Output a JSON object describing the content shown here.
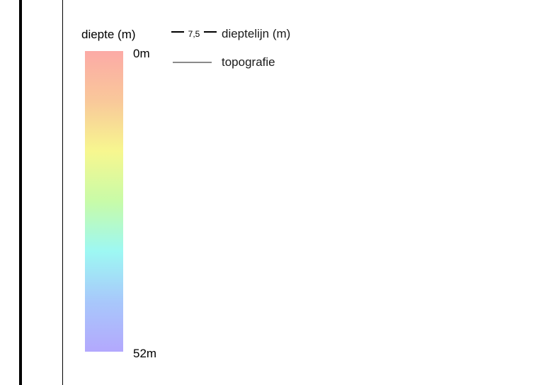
{
  "legend": {
    "depth_title": "diepte (m)",
    "scale_top_label": "0m",
    "scale_bottom_label": "52m",
    "scale_min_depth_m": 0,
    "scale_max_depth_m": 52,
    "gradient_colors": [
      "#fcaaa6",
      "#f9c89a",
      "#f7f78f",
      "#c8fba8",
      "#9df8f3",
      "#a8c8fb",
      "#b3a8fd"
    ],
    "contour_sample_value": "7,5",
    "contour_label": "dieptelijn (m)",
    "topo_label": "topografie",
    "topo_line_color": "#8a8a8a"
  }
}
